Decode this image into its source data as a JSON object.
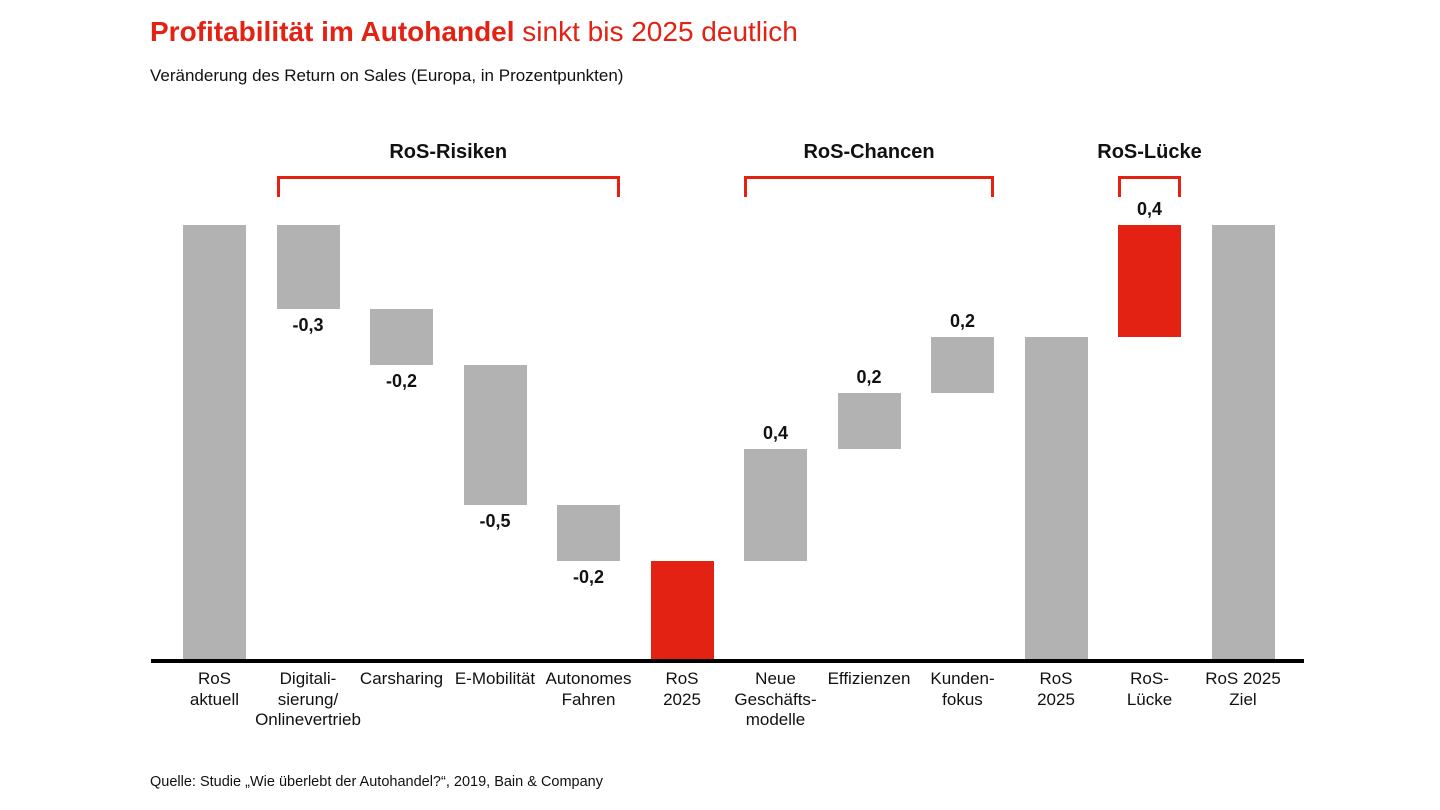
{
  "title": {
    "emphasis": "Profitabilität im Autohandel",
    "rest": " sinkt bis 2025 deutlich"
  },
  "subtitle": "Veränderung des Return on Sales (Europa, in Prozentpunkten)",
  "source": "Quelle: Studie „Wie überlebt der Autohandel?“, 2019, Bain & Company",
  "colors": {
    "red": "#e32213",
    "gray": "#b2b2b2",
    "text": "#111111",
    "axis": "#000000"
  },
  "chart_data": {
    "type": "bar",
    "subtype": "waterfall",
    "title": "Profitabilität im Autohandel sinkt bis 2025 deutlich",
    "xlabel": "",
    "ylabel": "Veränderung des Return on Sales (Europa, in Prozentpunkten)",
    "unit": "Prozentpunkte",
    "ylim": [
      0,
      1.6
    ],
    "grid": false,
    "legend": "none",
    "bars": [
      {
        "label": [
          "RoS",
          "aktuell"
        ],
        "kind": "absolute",
        "value": 1.55,
        "value_label": null,
        "color": "gray"
      },
      {
        "label": [
          "Digitali-",
          "sierung/",
          "Onlinevertrieb"
        ],
        "kind": "delta",
        "value": -0.3,
        "value_label": "-0,3",
        "color": "gray"
      },
      {
        "label": [
          "Carsharing"
        ],
        "kind": "delta",
        "value": -0.2,
        "value_label": "-0,2",
        "color": "gray"
      },
      {
        "label": [
          "E-Mobilität"
        ],
        "kind": "delta",
        "value": -0.5,
        "value_label": "-0,5",
        "color": "gray"
      },
      {
        "label": [
          "Autonomes",
          "Fahren"
        ],
        "kind": "delta",
        "value": -0.2,
        "value_label": "-0,2",
        "color": "gray"
      },
      {
        "label": [
          "RoS",
          "2025"
        ],
        "kind": "absolute",
        "value": 0.35,
        "value_label": null,
        "color": "red"
      },
      {
        "label": [
          "Neue",
          "Geschäfts-",
          "modelle"
        ],
        "kind": "delta",
        "value": 0.4,
        "value_label": "0,4",
        "color": "gray"
      },
      {
        "label": [
          "Effizienzen"
        ],
        "kind": "delta",
        "value": 0.2,
        "value_label": "0,2",
        "color": "gray"
      },
      {
        "label": [
          "Kunden-",
          "fokus"
        ],
        "kind": "delta",
        "value": 0.2,
        "value_label": "0,2",
        "color": "gray"
      },
      {
        "label": [
          "RoS",
          "2025"
        ],
        "kind": "absolute",
        "value": 1.15,
        "value_label": null,
        "color": "gray"
      },
      {
        "label": [
          "RoS-",
          "Lücke"
        ],
        "kind": "delta",
        "value": 0.4,
        "value_label": "0,4",
        "color": "red"
      },
      {
        "label": [
          "RoS 2025",
          "Ziel"
        ],
        "kind": "absolute",
        "value": 1.55,
        "value_label": null,
        "color": "gray"
      }
    ],
    "brackets": [
      {
        "label": "RoS-Risiken",
        "from_bar": 1,
        "to_bar": 4
      },
      {
        "label": "RoS-Chancen",
        "from_bar": 6,
        "to_bar": 8
      },
      {
        "label": "RoS-Lücke",
        "from_bar": 10,
        "to_bar": 10
      }
    ]
  }
}
